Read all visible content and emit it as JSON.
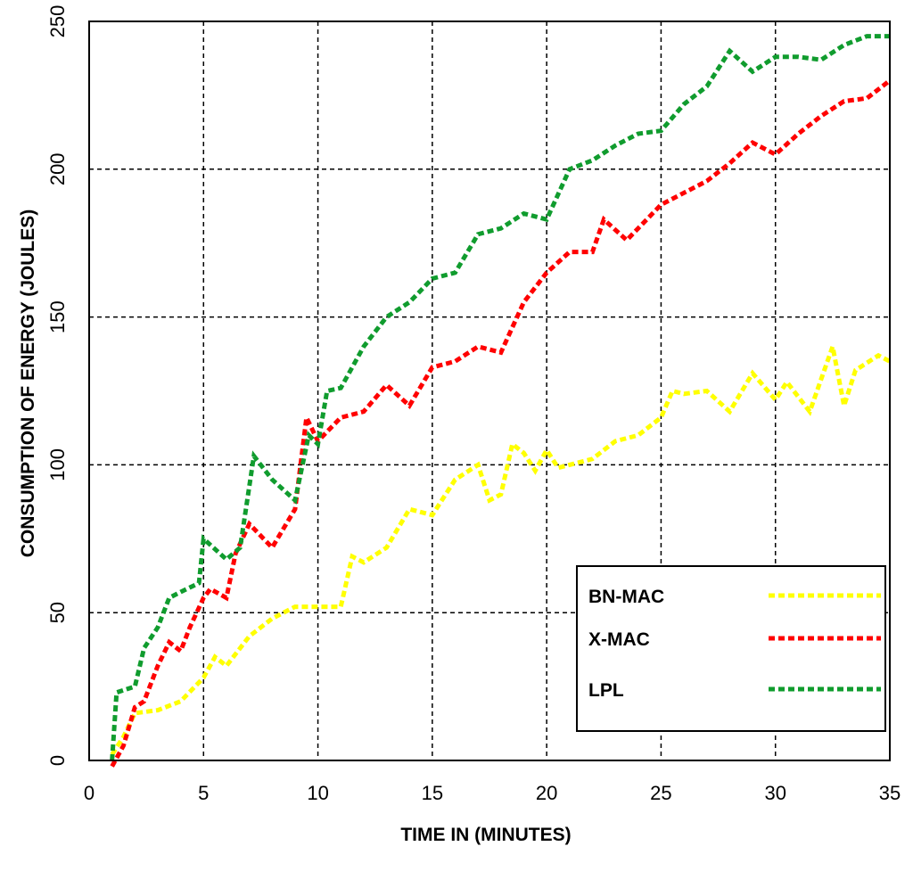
{
  "chart_data": {
    "type": "line",
    "xlabel": "TIME IN (MINUTES)",
    "ylabel": "CONSUMPTION OF ENERGY (JOULES)",
    "xlim": [
      0,
      35
    ],
    "xticks": [
      0,
      5,
      10,
      15,
      20,
      25,
      30,
      35
    ],
    "ylim": [
      0,
      250
    ],
    "yticks": [
      0,
      50,
      100,
      150,
      200,
      250
    ],
    "grid": true,
    "legend": "lower right",
    "series": [
      {
        "name": "BN-MAC",
        "color": "#ffff00",
        "x": [
          1,
          1.5,
          2,
          3,
          4,
          5,
          5.5,
          6,
          7,
          8,
          9,
          10,
          11,
          11.5,
          12,
          13,
          14,
          15,
          16,
          17,
          17.5,
          18,
          18.5,
          19,
          19.5,
          20,
          20.5,
          22,
          23,
          24,
          25,
          25.5,
          26,
          27,
          28,
          29,
          30,
          30.5,
          31.5,
          32.5,
          33,
          33.5,
          34.5,
          35
        ],
        "values": [
          2,
          8,
          16,
          17,
          20,
          28,
          35,
          32,
          42,
          48,
          52,
          52,
          52,
          69,
          67,
          72,
          85,
          83,
          95,
          100,
          88,
          90,
          107,
          104,
          98,
          105,
          99,
          102,
          108,
          110,
          116,
          125,
          124,
          125,
          118,
          131,
          122,
          128,
          118,
          140,
          120,
          132,
          137,
          135
        ]
      },
      {
        "name": "X-MAC",
        "color": "#ff0000",
        "x": [
          1,
          1.5,
          2,
          2.4,
          3,
          3.5,
          4,
          4.4,
          5,
          5.3,
          6,
          6.4,
          7,
          8,
          9,
          9.5,
          10,
          11,
          12,
          13,
          14,
          15,
          16,
          17,
          18,
          19,
          20,
          21,
          22,
          22.5,
          23.5,
          24,
          25,
          26,
          27,
          28,
          29,
          30,
          31,
          32,
          33,
          34,
          35
        ],
        "values": [
          -2,
          5,
          18,
          20,
          32,
          40,
          37,
          45,
          55,
          58,
          55,
          70,
          80,
          72,
          85,
          116,
          108,
          116,
          118,
          127,
          120,
          133,
          135,
          140,
          138,
          155,
          165,
          172,
          172,
          183,
          176,
          180,
          188,
          192,
          196,
          202,
          209,
          205,
          212,
          218,
          223,
          224,
          230
        ]
      },
      {
        "name": "LPL",
        "color": "#109c2e",
        "x": [
          1,
          1.2,
          2,
          2.4,
          3,
          3.5,
          4,
          4.8,
          5,
          6,
          6.6,
          7.2,
          8,
          9,
          9.6,
          10,
          10.4,
          11,
          12,
          13,
          14,
          15,
          16,
          17,
          18,
          19,
          20,
          21,
          22,
          23,
          24,
          25,
          26,
          27,
          28,
          29,
          30,
          31,
          32,
          33,
          34,
          35
        ],
        "values": [
          0,
          23,
          25,
          38,
          45,
          55,
          57,
          60,
          75,
          68,
          72,
          103,
          95,
          88,
          110,
          107,
          125,
          126,
          140,
          150,
          155,
          163,
          165,
          178,
          180,
          185,
          183,
          200,
          203,
          208,
          212,
          213,
          222,
          228,
          240,
          233,
          238,
          238,
          237,
          242,
          245,
          245
        ]
      }
    ]
  }
}
